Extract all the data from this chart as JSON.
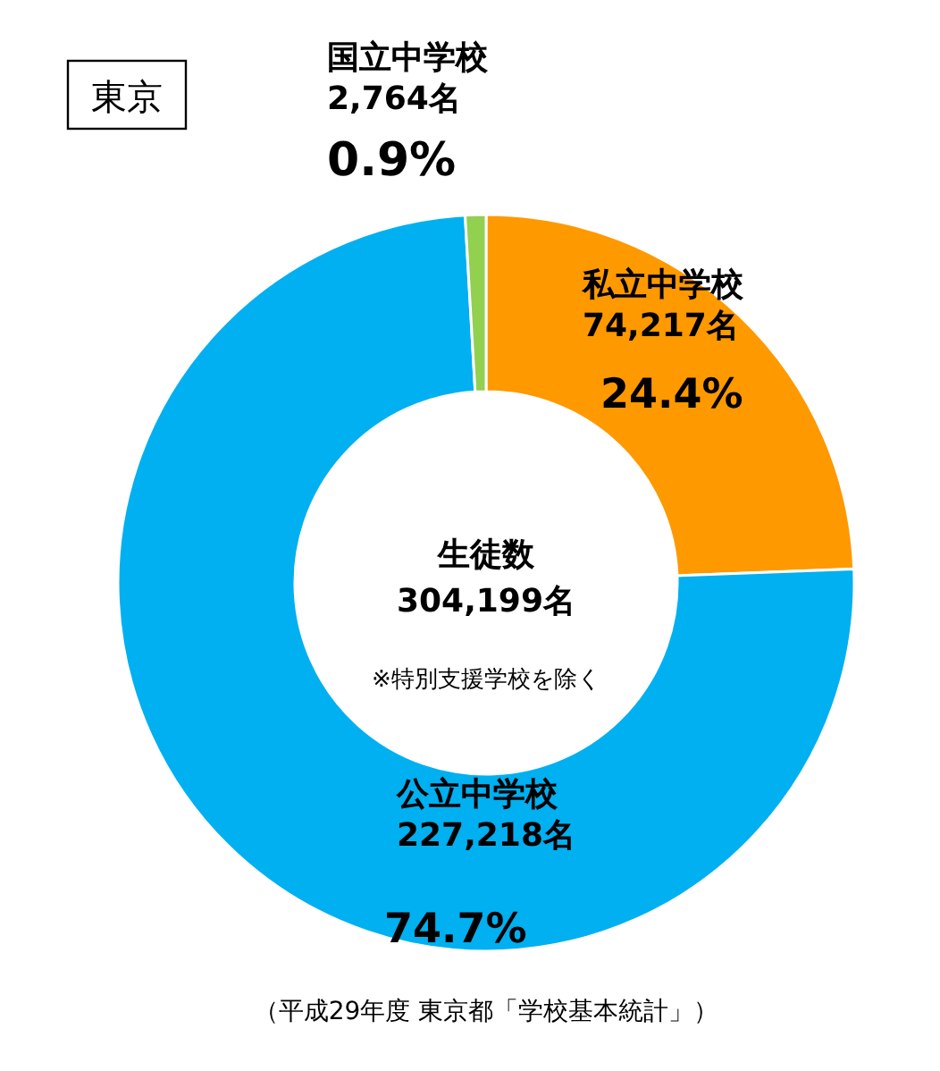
{
  "chart_data": {
    "type": "donut",
    "title": "東京",
    "categories": [
      "私立中学校",
      "公立中学校",
      "国立中学校"
    ],
    "values": [
      74217,
      227218,
      2764
    ],
    "value_labels": [
      "74,217名",
      "227,218名",
      "2,764名"
    ],
    "colors": [
      "#ff9900",
      "#00b0f0",
      "#92d050"
    ],
    "annotations": [
      "24.4%",
      "74.7%",
      "0.9%",
      "生徒数",
      "304,199名",
      "※特別支援学校を除く",
      "（平成29年度 東京都「学校基本統計」）"
    ]
  }
}
